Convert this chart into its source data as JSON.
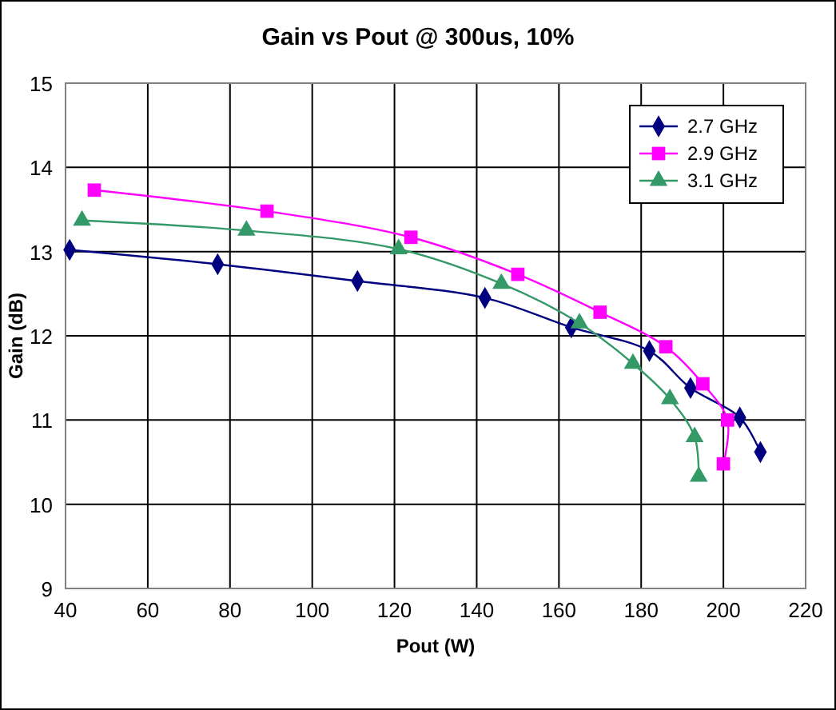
{
  "chart_data": {
    "type": "line",
    "title": "Gain vs Pout @ 300us, 10%",
    "xlabel": "Pout (W)",
    "ylabel": "Gain (dB)",
    "xlim": [
      40,
      220
    ],
    "xticks": [
      40,
      60,
      80,
      100,
      120,
      140,
      160,
      180,
      200,
      220
    ],
    "ylim": [
      9,
      15
    ],
    "yticks": [
      9,
      10,
      11,
      12,
      13,
      14,
      15
    ],
    "grid": true,
    "legend": "top right",
    "series": [
      {
        "name": "2.7 GHz",
        "color": "#000080",
        "marker": "diamond",
        "x": [
          41,
          77,
          111,
          142,
          163,
          182,
          192,
          204,
          209
        ],
        "values": [
          13.02,
          12.85,
          12.65,
          12.45,
          12.1,
          11.82,
          11.38,
          11.03,
          10.62
        ]
      },
      {
        "name": "2.9 GHz",
        "color": "#ff00ff",
        "marker": "square",
        "x": [
          47,
          89,
          124,
          150,
          170,
          186,
          195,
          201,
          200
        ],
        "values": [
          13.73,
          13.48,
          13.17,
          12.73,
          12.28,
          11.87,
          11.43,
          11.0,
          10.48
        ]
      },
      {
        "name": "3.1 GHz",
        "color": "#339966",
        "marker": "triangle",
        "x": [
          44,
          84,
          121,
          146,
          165,
          178,
          187,
          193,
          194
        ],
        "values": [
          13.37,
          13.25,
          13.03,
          12.62,
          12.15,
          11.67,
          11.25,
          10.8,
          10.33
        ]
      }
    ]
  }
}
